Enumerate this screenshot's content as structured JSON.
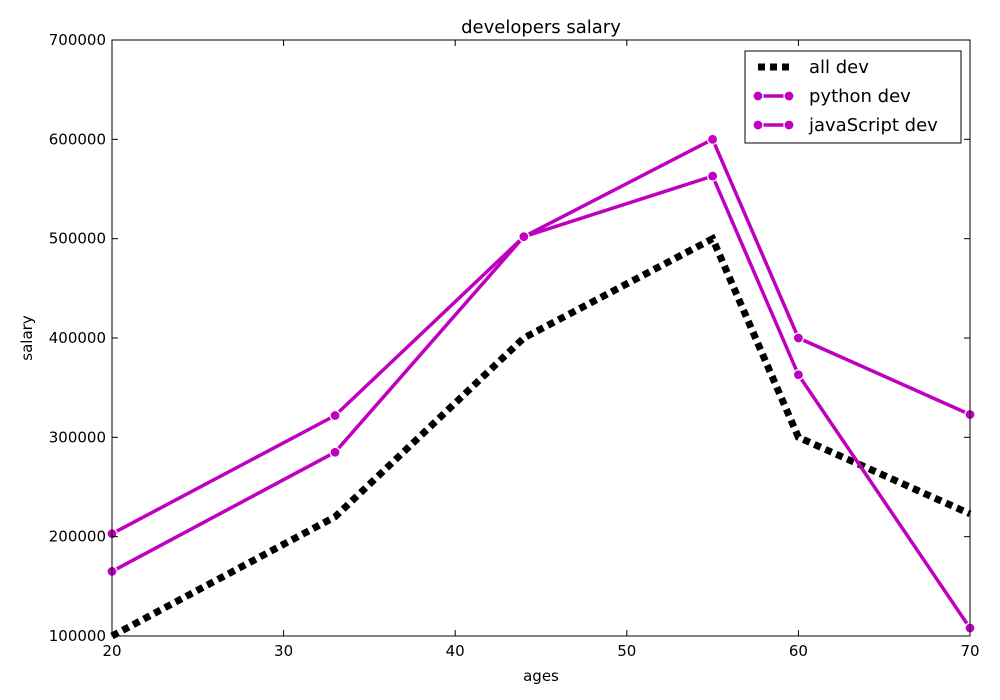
{
  "chart_data": {
    "type": "line",
    "title": "developers salary",
    "xlabel": "ages",
    "ylabel": "salary",
    "xlim": [
      20,
      70
    ],
    "ylim": [
      100000,
      700000
    ],
    "x_ticks": [
      20,
      30,
      40,
      50,
      60,
      70
    ],
    "x_tick_labels": [
      "20",
      "30",
      "40",
      "50",
      "60",
      "70"
    ],
    "y_ticks": [
      100000,
      200000,
      300000,
      400000,
      500000,
      600000,
      700000
    ],
    "y_tick_labels": [
      "100000",
      "200000",
      "300000",
      "400000",
      "500000",
      "600000",
      "700000"
    ],
    "grid": false,
    "legend_position": "top-right",
    "series": [
      {
        "name": "all dev",
        "color": "#000000",
        "style": "dotted",
        "markers": false,
        "x": [
          20,
          33,
          44,
          55,
          60,
          70
        ],
        "y": [
          100000,
          220000,
          400000,
          500000,
          300000,
          223000
        ]
      },
      {
        "name": "python dev",
        "color": "#bf00bf",
        "style": "solid",
        "markers": true,
        "x": [
          20,
          33,
          44,
          55,
          60,
          70
        ],
        "y": [
          203000,
          322000,
          502000,
          600000,
          400000,
          323000
        ]
      },
      {
        "name": "javaScript dev",
        "color": "#bf00bf",
        "style": "solid",
        "markers": true,
        "x": [
          20,
          33,
          44,
          55,
          60,
          70
        ],
        "y": [
          165000,
          285000,
          502000,
          563000,
          363000,
          108000
        ]
      }
    ]
  }
}
